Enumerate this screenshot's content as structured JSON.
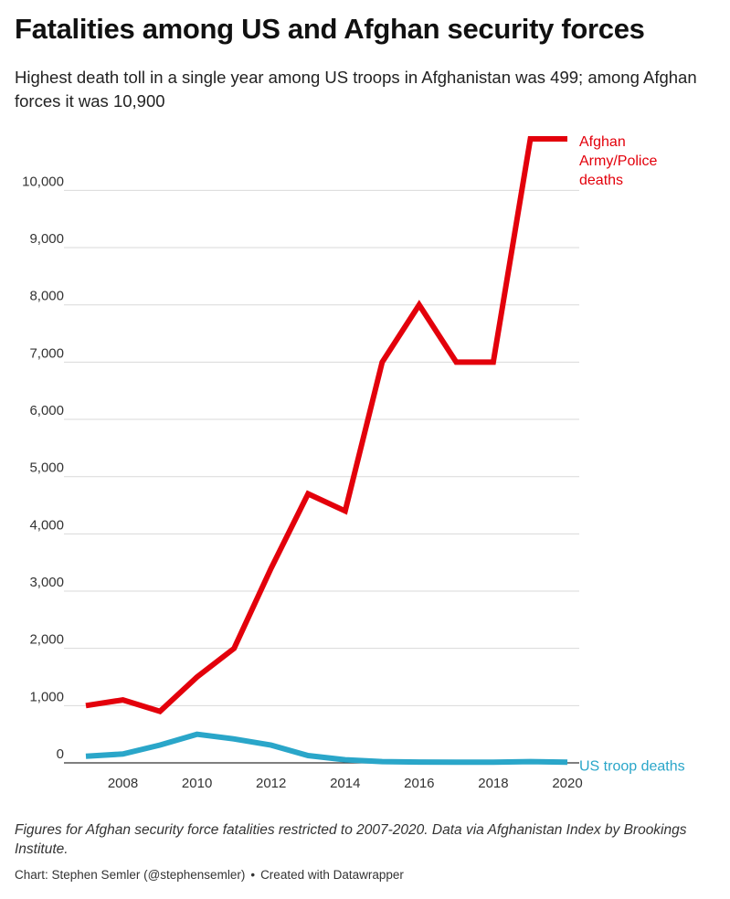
{
  "header": {
    "title": "Fatalities among US and Afghan security forces",
    "subtitle": "Highest death toll in a single year among US troops in Afghanistan was 499; among Afghan forces it was 10,900"
  },
  "footer": {
    "note": "Figures for Afghan security force fatalities restricted to 2007-2020. Data via Afghanistan Index by Brookings Institute.",
    "credit_author": "Chart: Stephen Semler (@stephensemler)",
    "credit_separator": "•",
    "credit_tool": "Created with Datawrapper"
  },
  "chart_data": {
    "type": "line",
    "title": "Fatalities among US and Afghan security forces",
    "xlabel": "",
    "ylabel": "",
    "xlim": [
      2007,
      2020
    ],
    "ylim": [
      0,
      10900
    ],
    "x_ticks": [
      2008,
      2010,
      2012,
      2014,
      2016,
      2018,
      2020
    ],
    "x_tick_labels": [
      "2008",
      "2010",
      "2012",
      "2014",
      "2016",
      "2018",
      "2020"
    ],
    "y_ticks": [
      0,
      1000,
      2000,
      3000,
      4000,
      5000,
      6000,
      7000,
      8000,
      9000,
      10000
    ],
    "y_tick_labels": [
      "0",
      "1,000",
      "2,000",
      "3,000",
      "4,000",
      "5,000",
      "6,000",
      "7,000",
      "8,000",
      "9,000",
      "10,000"
    ],
    "grid": "horizontal",
    "legend": "direct labels at line ends",
    "x": [
      2007,
      2008,
      2009,
      2010,
      2011,
      2012,
      2013,
      2014,
      2015,
      2016,
      2017,
      2018,
      2019,
      2020
    ],
    "series": [
      {
        "name": "Afghan Army/Police deaths",
        "label_lines": [
          "Afghan",
          "Army/Police",
          "deaths"
        ],
        "color": "#e3000b",
        "values": [
          1000,
          1100,
          900,
          1500,
          2000,
          3400,
          4700,
          4400,
          7000,
          8000,
          7000,
          7000,
          10900,
          10900
        ]
      },
      {
        "name": "US troop deaths",
        "label_lines": [
          "US troop deaths"
        ],
        "color": "#2aa6c9",
        "values": [
          117,
          155,
          311,
          499,
          418,
          310,
          127,
          55,
          22,
          14,
          11,
          13,
          22,
          11
        ]
      }
    ]
  }
}
